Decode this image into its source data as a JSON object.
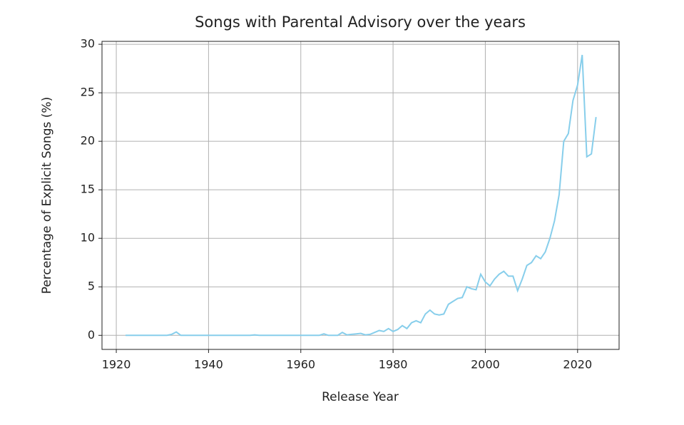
{
  "chart_data": {
    "type": "line",
    "title": "Songs with Parental Advisory over the years",
    "xlabel": "Release Year",
    "ylabel": "Percentage of Explicit Songs (%)",
    "x": [
      1922,
      1923,
      1924,
      1925,
      1926,
      1927,
      1928,
      1929,
      1930,
      1931,
      1932,
      1933,
      1934,
      1935,
      1936,
      1937,
      1938,
      1939,
      1940,
      1941,
      1942,
      1943,
      1944,
      1945,
      1946,
      1947,
      1948,
      1949,
      1950,
      1951,
      1952,
      1953,
      1954,
      1955,
      1956,
      1957,
      1958,
      1959,
      1960,
      1961,
      1962,
      1963,
      1964,
      1965,
      1966,
      1967,
      1968,
      1969,
      1970,
      1971,
      1972,
      1973,
      1974,
      1975,
      1976,
      1977,
      1978,
      1979,
      1980,
      1981,
      1982,
      1983,
      1984,
      1985,
      1986,
      1987,
      1988,
      1989,
      1990,
      1991,
      1992,
      1993,
      1994,
      1995,
      1996,
      1997,
      1998,
      1999,
      2000,
      2001,
      2002,
      2003,
      2004,
      2005,
      2006,
      2007,
      2008,
      2009,
      2010,
      2011,
      2012,
      2013,
      2014,
      2015,
      2016,
      2017,
      2018,
      2019,
      2020,
      2021,
      2022,
      2023,
      2024
    ],
    "values": [
      0,
      0,
      0,
      0,
      0,
      0,
      0,
      0,
      0,
      0,
      0.1,
      0.35,
      0,
      0,
      0,
      0,
      0,
      0,
      0,
      0,
      0,
      0,
      0,
      0,
      0,
      0,
      0,
      0,
      0.05,
      0,
      0,
      0,
      0,
      0,
      0,
      0,
      0,
      0,
      0,
      0,
      0,
      0,
      0,
      0.15,
      0,
      0,
      0,
      0.3,
      0.05,
      0.1,
      0.15,
      0.2,
      0.05,
      0.1,
      0.3,
      0.5,
      0.4,
      0.7,
      0.4,
      0.6,
      1.0,
      0.7,
      1.3,
      1.5,
      1.3,
      2.2,
      2.6,
      2.2,
      2.1,
      2.2,
      3.2,
      3.5,
      3.8,
      3.9,
      5.0,
      4.8,
      4.7,
      6.3,
      5.5,
      5.1,
      5.8,
      6.3,
      6.6,
      6.1,
      6.1,
      4.6,
      5.8,
      7.2,
      7.5,
      8.2,
      7.9,
      8.6,
      10.0,
      11.8,
      14.5,
      20.0,
      20.8,
      24.2,
      25.8,
      28.9,
      18.4,
      18.7,
      22.5
    ],
    "color": "#87ceeb",
    "xlim": [
      1916.9,
      2029
    ],
    "xticks": [
      1920,
      1940,
      1960,
      1980,
      2000,
      2020
    ],
    "ylim": [
      -1.45,
      30.3
    ],
    "yticks": [
      0,
      5,
      10,
      15,
      20,
      25,
      30
    ],
    "grid": true
  }
}
